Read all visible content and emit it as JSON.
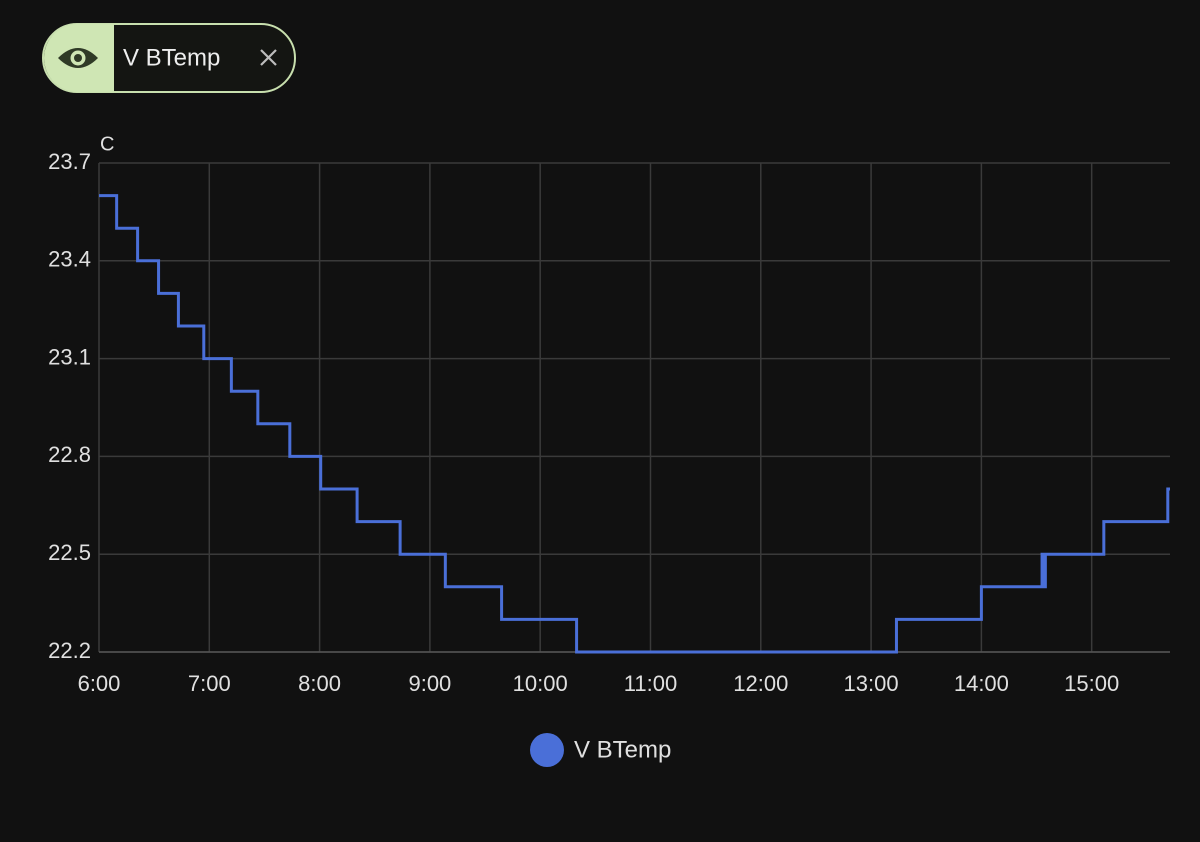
{
  "chip": {
    "label": "V BTemp"
  },
  "chart_data": {
    "type": "step",
    "y_label": "C",
    "xlim": [
      6,
      15.71
    ],
    "xticks": [
      {
        "value": 6,
        "label": "6:00"
      },
      {
        "value": 7,
        "label": "7:00"
      },
      {
        "value": 8,
        "label": "8:00"
      },
      {
        "value": 9,
        "label": "9:00"
      },
      {
        "value": 10,
        "label": "10:00"
      },
      {
        "value": 11,
        "label": "11:00"
      },
      {
        "value": 12,
        "label": "12:00"
      },
      {
        "value": 13,
        "label": "13:00"
      },
      {
        "value": 14,
        "label": "14:00"
      },
      {
        "value": 15,
        "label": "15:00"
      }
    ],
    "ylim": [
      22.2,
      23.7
    ],
    "yticks": [
      22.2,
      22.5,
      22.8,
      23.1,
      23.4,
      23.7
    ],
    "grid": true,
    "series": [
      {
        "name": "V BTemp",
        "color": "#4a6fd8",
        "x": [
          6,
          6.16,
          6.35,
          6.54,
          6.72,
          6.95,
          7.2,
          7.44,
          7.73,
          8.01,
          8.34,
          8.73,
          9.14,
          9.65,
          10.33,
          13.23,
          14,
          14.55,
          14.57,
          14.58,
          15.11,
          15.69,
          15.71
        ],
        "values": [
          23.6,
          23.5,
          23.4,
          23.3,
          23.2,
          23.1,
          23.0,
          22.9,
          22.8,
          22.7,
          22.6,
          22.5,
          22.4,
          22.3,
          22.2,
          22.3,
          22.4,
          22.5,
          22.4,
          22.5,
          22.6,
          22.7,
          22.7
        ]
      }
    ]
  }
}
